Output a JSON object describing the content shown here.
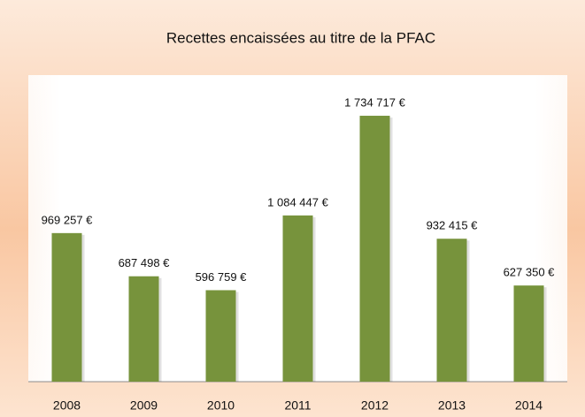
{
  "chart_data": {
    "type": "bar",
    "title": "Recettes encaissées au titre de la PFAC",
    "categories": [
      "2008",
      "2009",
      "2010",
      "2011",
      "2012",
      "2013",
      "2014"
    ],
    "values": [
      969257,
      687498,
      596759,
      1084447,
      1734717,
      932415,
      627350
    ],
    "value_labels": [
      "969 257 €",
      "687 498 €",
      "596 759 €",
      "1 084 447 €",
      "1 734 717 €",
      "932 415 €",
      "627 350 €"
    ],
    "color": "#77933c",
    "ylim": [
      0,
      2000000
    ]
  }
}
